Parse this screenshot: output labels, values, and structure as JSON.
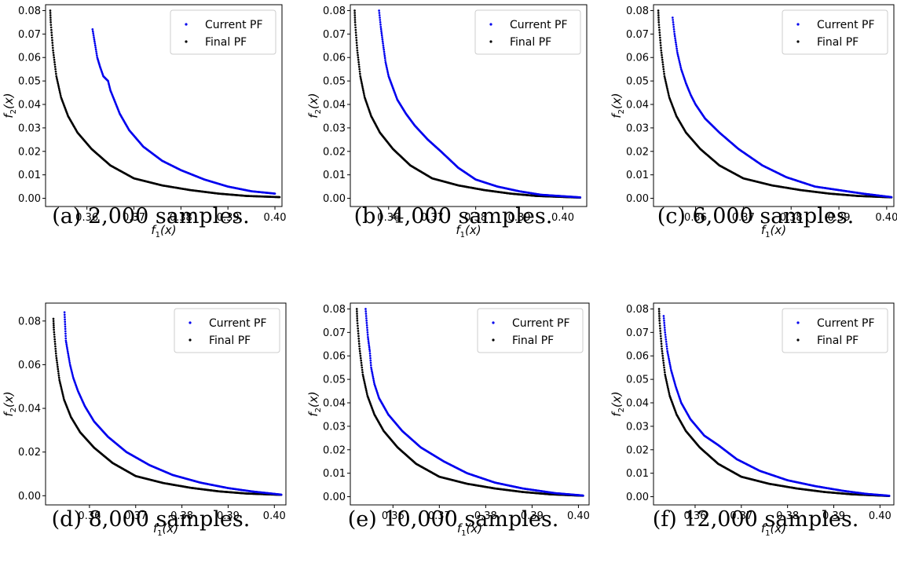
{
  "legend_labels": [
    "Current PF",
    "Final PF"
  ],
  "colors": {
    "current": "#0000ee",
    "final": "#000000"
  },
  "chart_data": [
    {
      "type": "scatter",
      "caption": "(a) 2,000 samples.",
      "xlabel": "f1(x)",
      "ylabel": "f2(x)",
      "xlim": [
        0.3512,
        0.4015
      ],
      "ylim": [
        -0.0035,
        0.0825
      ],
      "xticks": [
        0.36,
        0.37,
        0.38,
        0.39,
        0.4
      ],
      "yticks": [
        0.0,
        0.01,
        0.02,
        0.03,
        0.04,
        0.05,
        0.06,
        0.07,
        0.08
      ],
      "legend_position": "top-right",
      "series": [
        {
          "name": "Current PF",
          "points": [
            [
              0.3612,
              0.072
            ],
            [
              0.3617,
              0.066
            ],
            [
              0.3622,
              0.06
            ],
            [
              0.3628,
              0.056
            ],
            [
              0.3635,
              0.052
            ],
            [
              0.3645,
              0.05
            ],
            [
              0.365,
              0.046
            ],
            [
              0.3658,
              0.042
            ],
            [
              0.367,
              0.036
            ],
            [
              0.369,
              0.029
            ],
            [
              0.372,
              0.022
            ],
            [
              0.376,
              0.016
            ],
            [
              0.38,
              0.012
            ],
            [
              0.385,
              0.008
            ],
            [
              0.39,
              0.005
            ],
            [
              0.395,
              0.003
            ],
            [
              0.4,
              0.002
            ]
          ]
        },
        {
          "name": "Final PF",
          "points": [
            [
              0.3522,
              0.08
            ],
            [
              0.3523,
              0.075
            ],
            [
              0.3528,
              0.063
            ],
            [
              0.3535,
              0.052
            ],
            [
              0.3545,
              0.043
            ],
            [
              0.356,
              0.035
            ],
            [
              0.358,
              0.028
            ],
            [
              0.361,
              0.021
            ],
            [
              0.365,
              0.014
            ],
            [
              0.37,
              0.0085
            ],
            [
              0.376,
              0.0055
            ],
            [
              0.382,
              0.0035
            ],
            [
              0.388,
              0.002
            ],
            [
              0.394,
              0.001
            ],
            [
              0.401,
              0.0005
            ]
          ]
        }
      ]
    },
    {
      "type": "scatter",
      "caption": "(b) 4,000 samples.",
      "xlabel": "f1(x)",
      "ylabel": "f2(x)",
      "xlim": [
        0.3512,
        0.4055
      ],
      "ylim": [
        -0.0035,
        0.0825
      ],
      "xticks": [
        0.36,
        0.37,
        0.38,
        0.39,
        0.4
      ],
      "yticks": [
        0.0,
        0.01,
        0.02,
        0.03,
        0.04,
        0.05,
        0.06,
        0.07,
        0.08
      ],
      "legend_position": "top-right",
      "series": [
        {
          "name": "Current PF",
          "points": [
            [
              0.3578,
              0.08
            ],
            [
              0.3582,
              0.073
            ],
            [
              0.3587,
              0.066
            ],
            [
              0.3593,
              0.058
            ],
            [
              0.36,
              0.052
            ],
            [
              0.361,
              0.047
            ],
            [
              0.362,
              0.042
            ],
            [
              0.364,
              0.036
            ],
            [
              0.366,
              0.031
            ],
            [
              0.369,
              0.025
            ],
            [
              0.372,
              0.02
            ],
            [
              0.376,
              0.013
            ],
            [
              0.38,
              0.008
            ],
            [
              0.385,
              0.005
            ],
            [
              0.39,
              0.003
            ],
            [
              0.395,
              0.0015
            ],
            [
              0.404,
              0.0004
            ]
          ]
        },
        {
          "name": "Final PF",
          "points": [
            [
              0.3522,
              0.08
            ],
            [
              0.3523,
              0.075
            ],
            [
              0.3528,
              0.063
            ],
            [
              0.3535,
              0.052
            ],
            [
              0.3545,
              0.043
            ],
            [
              0.356,
              0.035
            ],
            [
              0.358,
              0.028
            ],
            [
              0.361,
              0.021
            ],
            [
              0.365,
              0.014
            ],
            [
              0.37,
              0.0085
            ],
            [
              0.376,
              0.0055
            ],
            [
              0.382,
              0.0035
            ],
            [
              0.388,
              0.002
            ],
            [
              0.394,
              0.001
            ],
            [
              0.404,
              0.0003
            ]
          ]
        }
      ]
    },
    {
      "type": "scatter",
      "caption": "(c) 6,000 samples.",
      "xlabel": "f1(x)",
      "ylabel": "f2(x)",
      "xlim": [
        0.3512,
        0.4015
      ],
      "ylim": [
        -0.0035,
        0.0825
      ],
      "xticks": [
        0.36,
        0.37,
        0.38,
        0.39,
        0.4
      ],
      "yticks": [
        0.0,
        0.01,
        0.02,
        0.03,
        0.04,
        0.05,
        0.06,
        0.07,
        0.08
      ],
      "legend_position": "top-right",
      "series": [
        {
          "name": "Current PF",
          "points": [
            [
              0.3552,
              0.077
            ],
            [
              0.3556,
              0.07
            ],
            [
              0.3562,
              0.062
            ],
            [
              0.357,
              0.055
            ],
            [
              0.358,
              0.049
            ],
            [
              0.359,
              0.044
            ],
            [
              0.36,
              0.04
            ],
            [
              0.362,
              0.034
            ],
            [
              0.365,
              0.028
            ],
            [
              0.369,
              0.021
            ],
            [
              0.374,
              0.014
            ],
            [
              0.379,
              0.009
            ],
            [
              0.385,
              0.005
            ],
            [
              0.39,
              0.0035
            ],
            [
              0.395,
              0.002
            ],
            [
              0.401,
              0.0005
            ]
          ]
        },
        {
          "name": "Final PF",
          "points": [
            [
              0.3522,
              0.08
            ],
            [
              0.3523,
              0.075
            ],
            [
              0.3528,
              0.063
            ],
            [
              0.3535,
              0.052
            ],
            [
              0.3545,
              0.043
            ],
            [
              0.356,
              0.035
            ],
            [
              0.358,
              0.028
            ],
            [
              0.361,
              0.021
            ],
            [
              0.365,
              0.014
            ],
            [
              0.37,
              0.0085
            ],
            [
              0.376,
              0.0055
            ],
            [
              0.382,
              0.0035
            ],
            [
              0.388,
              0.002
            ],
            [
              0.394,
              0.001
            ],
            [
              0.401,
              0.0004
            ]
          ]
        }
      ]
    },
    {
      "type": "scatter",
      "caption": "(d) 8,000 samples.",
      "xlabel": "f1(x)",
      "ylabel": "f2(x)",
      "xlim": [
        0.3505,
        0.4025
      ],
      "ylim": [
        -0.0042,
        0.0882
      ],
      "xticks": [
        0.36,
        0.37,
        0.38,
        0.39,
        0.4
      ],
      "yticks": [
        0.0,
        0.02,
        0.04,
        0.06,
        0.08
      ],
      "legend_position": "top-right",
      "series": [
        {
          "name": "Current PF",
          "points": [
            [
              0.3546,
              0.084
            ],
            [
              0.3549,
              0.071
            ],
            [
              0.3553,
              0.066
            ],
            [
              0.3558,
              0.06
            ],
            [
              0.3565,
              0.054
            ],
            [
              0.3575,
              0.048
            ],
            [
              0.359,
              0.041
            ],
            [
              0.361,
              0.034
            ],
            [
              0.364,
              0.027
            ],
            [
              0.368,
              0.02
            ],
            [
              0.373,
              0.014
            ],
            [
              0.378,
              0.0095
            ],
            [
              0.384,
              0.006
            ],
            [
              0.39,
              0.0035
            ],
            [
              0.395,
              0.002
            ],
            [
              0.4015,
              0.0005
            ]
          ]
        },
        {
          "name": "Final PF",
          "points": [
            [
              0.3522,
              0.081
            ],
            [
              0.3523,
              0.076
            ],
            [
              0.3528,
              0.064
            ],
            [
              0.3535,
              0.053
            ],
            [
              0.3545,
              0.044
            ],
            [
              0.356,
              0.036
            ],
            [
              0.358,
              0.029
            ],
            [
              0.361,
              0.022
            ],
            [
              0.365,
              0.015
            ],
            [
              0.37,
              0.009
            ],
            [
              0.376,
              0.0058
            ],
            [
              0.382,
              0.0036
            ],
            [
              0.388,
              0.002
            ],
            [
              0.394,
              0.001
            ],
            [
              0.4015,
              0.0004
            ]
          ]
        }
      ]
    },
    {
      "type": "scatter",
      "caption": "(e) 10,000 samples.",
      "xlabel": "f1(x)",
      "ylabel": "f2(x)",
      "xlim": [
        0.3508,
        0.4023
      ],
      "ylim": [
        -0.0035,
        0.0825
      ],
      "xticks": [
        0.36,
        0.37,
        0.38,
        0.39,
        0.4
      ],
      "yticks": [
        0.0,
        0.01,
        0.02,
        0.03,
        0.04,
        0.05,
        0.06,
        0.07,
        0.08
      ],
      "legend_position": "top-right",
      "series": [
        {
          "name": "Current PF",
          "points": [
            [
              0.3541,
              0.08
            ],
            [
              0.3543,
              0.075
            ],
            [
              0.3546,
              0.068
            ],
            [
              0.355,
              0.062
            ],
            [
              0.3553,
              0.055
            ],
            [
              0.356,
              0.048
            ],
            [
              0.357,
              0.042
            ],
            [
              0.359,
              0.035
            ],
            [
              0.362,
              0.028
            ],
            [
              0.366,
              0.021
            ],
            [
              0.371,
              0.015
            ],
            [
              0.376,
              0.01
            ],
            [
              0.382,
              0.006
            ],
            [
              0.388,
              0.0035
            ],
            [
              0.395,
              0.0015
            ],
            [
              0.401,
              0.0005
            ]
          ]
        },
        {
          "name": "Final PF",
          "points": [
            [
              0.3522,
              0.08
            ],
            [
              0.3523,
              0.075
            ],
            [
              0.3528,
              0.063
            ],
            [
              0.3535,
              0.052
            ],
            [
              0.3545,
              0.043
            ],
            [
              0.356,
              0.035
            ],
            [
              0.358,
              0.028
            ],
            [
              0.361,
              0.021
            ],
            [
              0.365,
              0.014
            ],
            [
              0.37,
              0.0085
            ],
            [
              0.376,
              0.0055
            ],
            [
              0.382,
              0.0035
            ],
            [
              0.388,
              0.002
            ],
            [
              0.394,
              0.001
            ],
            [
              0.401,
              0.0004
            ]
          ]
        }
      ]
    },
    {
      "type": "scatter",
      "caption": "(f) 12,000 samples.",
      "xlabel": "f1(x)",
      "ylabel": "f2(x)",
      "xlim": [
        0.351,
        0.403
      ],
      "ylim": [
        -0.0035,
        0.0825
      ],
      "xticks": [
        0.36,
        0.37,
        0.38,
        0.39,
        0.4
      ],
      "yticks": [
        0.0,
        0.01,
        0.02,
        0.03,
        0.04,
        0.05,
        0.06,
        0.07,
        0.08
      ],
      "legend_position": "top-right",
      "series": [
        {
          "name": "Current PF",
          "points": [
            [
              0.3532,
              0.077
            ],
            [
              0.3535,
              0.07
            ],
            [
              0.354,
              0.062
            ],
            [
              0.3548,
              0.054
            ],
            [
              0.3558,
              0.047
            ],
            [
              0.357,
              0.04
            ],
            [
              0.359,
              0.033
            ],
            [
              0.362,
              0.026
            ],
            [
              0.365,
              0.022
            ],
            [
              0.369,
              0.016
            ],
            [
              0.374,
              0.011
            ],
            [
              0.38,
              0.007
            ],
            [
              0.386,
              0.0045
            ],
            [
              0.392,
              0.0025
            ],
            [
              0.397,
              0.0012
            ],
            [
              0.402,
              0.0004
            ]
          ]
        },
        {
          "name": "Final PF",
          "points": [
            [
              0.3522,
              0.08
            ],
            [
              0.3523,
              0.075
            ],
            [
              0.3528,
              0.063
            ],
            [
              0.3535,
              0.052
            ],
            [
              0.3545,
              0.043
            ],
            [
              0.356,
              0.035
            ],
            [
              0.358,
              0.028
            ],
            [
              0.361,
              0.021
            ],
            [
              0.365,
              0.014
            ],
            [
              0.37,
              0.0085
            ],
            [
              0.376,
              0.0055
            ],
            [
              0.382,
              0.0035
            ],
            [
              0.388,
              0.002
            ],
            [
              0.394,
              0.001
            ],
            [
              0.402,
              0.0003
            ]
          ]
        }
      ]
    }
  ]
}
